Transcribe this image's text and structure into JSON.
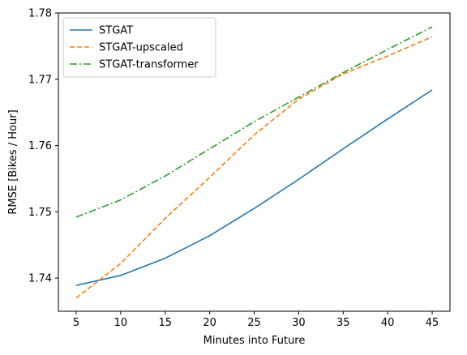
{
  "chart_data": {
    "type": "line",
    "title": "",
    "xlabel": "Minutes into Future",
    "ylabel": "RMSE [Bikes / Hour]",
    "xlim": [
      3.0,
      47.0
    ],
    "ylim": [
      1.735,
      1.78
    ],
    "xticks": [
      5,
      10,
      15,
      20,
      25,
      30,
      35,
      40,
      45
    ],
    "yticks": [
      1.74,
      1.75,
      1.76,
      1.77,
      1.78
    ],
    "ytick_labels": [
      "1.74",
      "1.75",
      "1.76",
      "1.77",
      "1.78"
    ],
    "grid": false,
    "legend_position": "top-left",
    "x": [
      5,
      10,
      15,
      20,
      25,
      30,
      35,
      40,
      45
    ],
    "series": [
      {
        "name": "STGAT",
        "color": "#1f77b4",
        "dash": "solid",
        "values": [
          1.7389,
          1.7404,
          1.743,
          1.7464,
          1.7505,
          1.7549,
          1.7595,
          1.764,
          1.7684
        ]
      },
      {
        "name": "STGAT-upscaled",
        "color": "#ff7f0e",
        "dash": "dashed",
        "values": [
          1.737,
          1.7422,
          1.749,
          1.7552,
          1.7616,
          1.767,
          1.7708,
          1.7735,
          1.7764
        ]
      },
      {
        "name": "STGAT-transformer",
        "color": "#2ca02c",
        "dash": "dashdot",
        "values": [
          1.7492,
          1.7518,
          1.7554,
          1.7595,
          1.7636,
          1.7673,
          1.771,
          1.7745,
          1.7779
        ]
      }
    ]
  }
}
